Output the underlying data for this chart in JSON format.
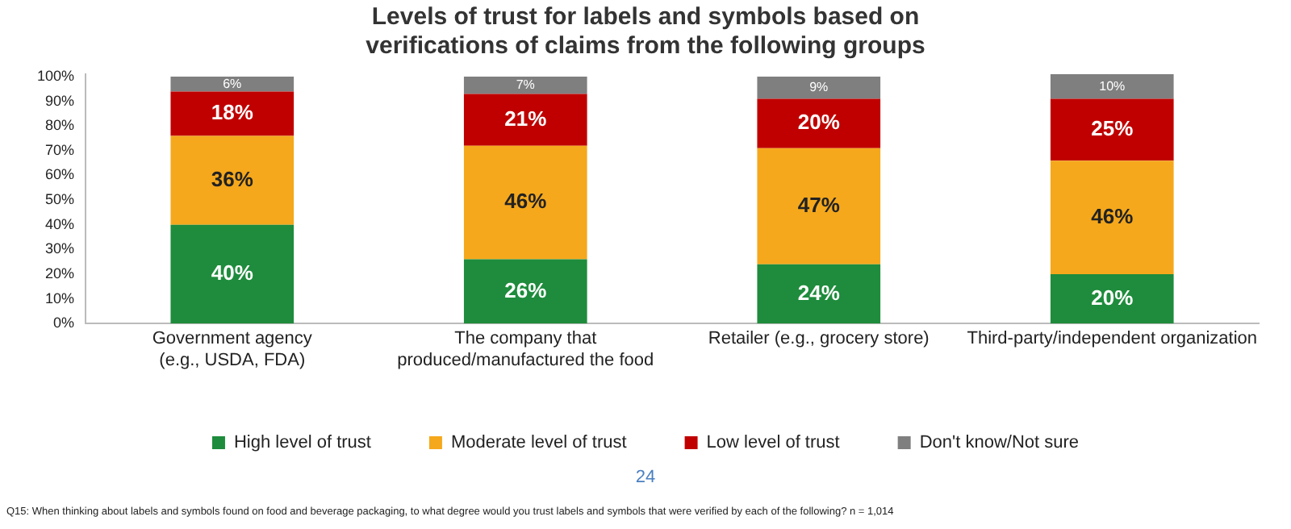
{
  "chart_data": {
    "type": "bar",
    "stacked": true,
    "title": "Levels of trust for labels and symbols based on\nverifications of claims from the following groups",
    "categories": [
      "Government agency\n(e.g., USDA, FDA)",
      "The company that\nproduced/manufactured the food",
      "Retailer (e.g., grocery store)",
      "Third-party/independent organization"
    ],
    "series": [
      {
        "name": "High level of trust",
        "color": "#1e8c3c",
        "values": [
          40,
          26,
          24,
          20
        ],
        "value_labels": [
          "40%",
          "26%",
          "24%",
          "20%"
        ]
      },
      {
        "name": "Moderate level of trust",
        "color": "#f5a81c",
        "values": [
          36,
          46,
          47,
          46
        ],
        "value_labels": [
          "36%",
          "46%",
          "47%",
          "46%"
        ]
      },
      {
        "name": "Low level of trust",
        "color": "#c00000",
        "values": [
          18,
          21,
          20,
          25
        ],
        "value_labels": [
          "18%",
          "21%",
          "20%",
          "25%"
        ]
      },
      {
        "name": "Don't know/Not sure",
        "color": "#7f7f7f",
        "values": [
          6,
          7,
          9,
          10
        ],
        "value_labels": [
          "6%",
          "7%",
          "9%",
          "10%"
        ]
      }
    ],
    "ylim": [
      0,
      101
    ],
    "yticks": [
      {
        "value": 0,
        "label": "0%"
      },
      {
        "value": 10,
        "label": "10%"
      },
      {
        "value": 20,
        "label": "20%"
      },
      {
        "value": 30,
        "label": "30%"
      },
      {
        "value": 40,
        "label": "40%"
      },
      {
        "value": 50,
        "label": "50%"
      },
      {
        "value": 60,
        "label": "60%"
      },
      {
        "value": 70,
        "label": "70%"
      },
      {
        "value": 80,
        "label": "80%"
      },
      {
        "value": 90,
        "label": "90%"
      },
      {
        "value": 100,
        "label": "100%"
      }
    ],
    "grid": false,
    "legend": "bottom",
    "annotations": [
      "24",
      "Q15: When thinking about labels and symbols found on food and beverage packaging, to what degree would you trust labels and symbols that were verified by each of the following? n = 1,014"
    ]
  }
}
